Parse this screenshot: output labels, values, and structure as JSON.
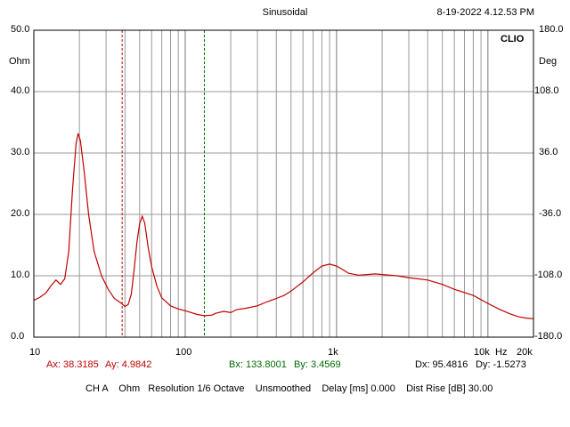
{
  "header": {
    "mode": "Sinusoidal",
    "timestamp": "8-19-2022 4.12.53 PM",
    "brand": "CLIO"
  },
  "chart_data": {
    "type": "line",
    "x_scale": "log",
    "xlim": [
      10,
      20000
    ],
    "ylim": [
      0,
      50
    ],
    "y2lim": [
      -180,
      180
    ],
    "ylabel": "Ohm",
    "y2label": "Deg",
    "grid": true,
    "y_ticks": [
      "0.0",
      "10.0",
      "20.0",
      "30.0",
      "40.0",
      "50.0"
    ],
    "y2_ticks": [
      "-180.0",
      "-108.0",
      "-36.0",
      "36.0",
      "108.0",
      "180.0"
    ],
    "x_ticks": [
      {
        "value": 10,
        "label": "10"
      },
      {
        "value": 100,
        "label": "100"
      },
      {
        "value": 1000,
        "label": "1k"
      },
      {
        "value": 10000,
        "label": "10k"
      },
      {
        "value": 20000,
        "label": "20k"
      }
    ],
    "x_unit": "Hz",
    "series": [
      {
        "color": "#c00000",
        "points": [
          [
            10,
            6.0
          ],
          [
            11,
            6.5
          ],
          [
            12,
            7.2
          ],
          [
            13,
            8.4
          ],
          [
            14,
            9.3
          ],
          [
            15,
            8.6
          ],
          [
            16,
            9.5
          ],
          [
            17,
            14
          ],
          [
            18,
            24
          ],
          [
            19,
            31.5
          ],
          [
            19.6,
            33.2
          ],
          [
            20.3,
            32
          ],
          [
            21.5,
            27
          ],
          [
            23,
            20
          ],
          [
            25,
            14
          ],
          [
            28,
            10
          ],
          [
            31,
            7.8
          ],
          [
            34,
            6.3
          ],
          [
            37,
            5.7
          ],
          [
            40,
            5.0
          ],
          [
            42,
            5.3
          ],
          [
            44,
            7.0
          ],
          [
            46,
            11
          ],
          [
            48,
            15.5
          ],
          [
            50,
            18.5
          ],
          [
            52,
            19.7
          ],
          [
            54,
            18.6
          ],
          [
            57,
            14.5
          ],
          [
            60,
            11.5
          ],
          [
            65,
            8.3
          ],
          [
            70,
            6.4
          ],
          [
            80,
            5.1
          ],
          [
            90,
            4.6
          ],
          [
            100,
            4.3
          ],
          [
            110,
            4.0
          ],
          [
            120,
            3.7
          ],
          [
            133.8,
            3.5
          ],
          [
            150,
            3.6
          ],
          [
            160,
            3.9
          ],
          [
            180,
            4.2
          ],
          [
            200,
            4.0
          ],
          [
            220,
            4.5
          ],
          [
            250,
            4.7
          ],
          [
            300,
            5.1
          ],
          [
            350,
            5.8
          ],
          [
            400,
            6.3
          ],
          [
            450,
            6.8
          ],
          [
            500,
            7.5
          ],
          [
            600,
            9.0
          ],
          [
            700,
            10.5
          ],
          [
            800,
            11.6
          ],
          [
            900,
            11.9
          ],
          [
            1000,
            11.6
          ],
          [
            1100,
            11.0
          ],
          [
            1200,
            10.4
          ],
          [
            1400,
            10.1
          ],
          [
            1600,
            10.2
          ],
          [
            1800,
            10.3
          ],
          [
            2000,
            10.2
          ],
          [
            2500,
            10.0
          ],
          [
            3000,
            9.7
          ],
          [
            4000,
            9.3
          ],
          [
            5000,
            8.6
          ],
          [
            6000,
            7.8
          ],
          [
            8000,
            6.8
          ],
          [
            10000,
            5.5
          ],
          [
            12000,
            4.5
          ],
          [
            14000,
            3.8
          ],
          [
            16000,
            3.3
          ],
          [
            18000,
            3.1
          ],
          [
            20000,
            3.0
          ]
        ]
      }
    ],
    "markers": [
      {
        "name": "A",
        "x": 38.3185,
        "color": "#c00000"
      },
      {
        "name": "B",
        "x": 133.8001,
        "color": "#007000"
      }
    ]
  },
  "cursor_readout": {
    "ax": "Ax: 38.3185",
    "ay": "Ay: 4.9842",
    "bx": "Bx: 133.8001",
    "by": "By: 3.4569",
    "dx": "Dx: 95.4816",
    "dy": "Dy: -1.5273"
  },
  "status_line": "CH A    Ohm   Resolution 1/6 Octave    Unsmoothed    Delay [ms] 0.000    Dist Rise [dB] 30.00"
}
